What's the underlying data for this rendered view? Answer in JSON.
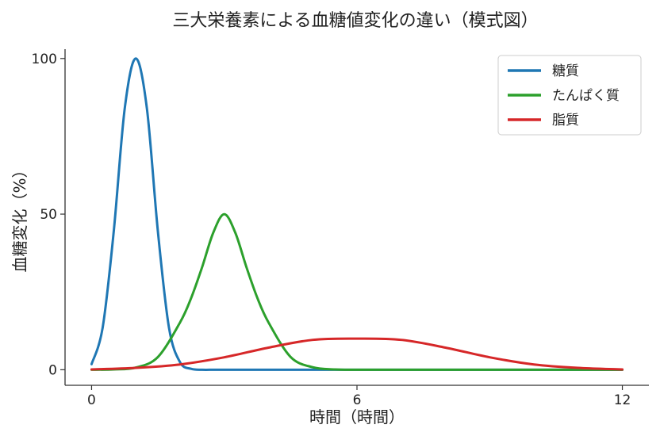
{
  "chart_data": {
    "type": "line",
    "title": "三大栄養素による血糖値変化の違い（模式図）",
    "xlabel": "時間（時間）",
    "ylabel": "血糖変化（%）",
    "xlim": [
      -0.6,
      12.6
    ],
    "ylim": [
      -5,
      103
    ],
    "xticks": [
      0,
      6,
      12
    ],
    "xtick_labels": [
      "0",
      "6",
      "12"
    ],
    "yticks": [
      0,
      50,
      100
    ],
    "ytick_labels": [
      "0",
      "50",
      "100"
    ],
    "grid": false,
    "legend_position": "top-right",
    "series": [
      {
        "name": "糖質",
        "color": "#1f77b4",
        "x": [
          0,
          0.25,
          0.5,
          0.75,
          1,
          1.25,
          1.5,
          1.75,
          2,
          2.25,
          2.5,
          2.75,
          3,
          4,
          5,
          6,
          7,
          8,
          9,
          10,
          11,
          12
        ],
        "y": [
          1.8,
          13.5,
          44.3,
          84.0,
          100,
          84.0,
          44.3,
          13.5,
          2.4,
          0.3,
          0,
          0,
          0,
          0,
          0,
          0,
          0,
          0,
          0,
          0,
          0,
          0
        ]
      },
      {
        "name": "たんぱく質",
        "color": "#2ca02c",
        "x": [
          0,
          0.5,
          1,
          1.5,
          2,
          2.25,
          2.5,
          2.75,
          3,
          3.25,
          3.5,
          3.75,
          4,
          4.5,
          5,
          5.5,
          6,
          7,
          8,
          9,
          10,
          11,
          12
        ],
        "y": [
          0,
          0.1,
          0.7,
          4.1,
          15.2,
          23.0,
          33.0,
          44.0,
          50,
          44.0,
          33.0,
          23.0,
          15.2,
          4.1,
          0.8,
          0.1,
          0,
          0,
          0,
          0,
          0,
          0,
          0
        ]
      },
      {
        "name": "脂質",
        "color": "#d62728",
        "x": [
          0,
          1,
          2,
          3,
          4,
          5,
          6,
          7,
          8,
          9,
          10,
          11,
          12
        ],
        "y": [
          0.1,
          0.6,
          1.7,
          4.0,
          7.1,
          9.6,
          10,
          9.6,
          7.1,
          4.0,
          1.7,
          0.6,
          0.1
        ]
      }
    ]
  }
}
